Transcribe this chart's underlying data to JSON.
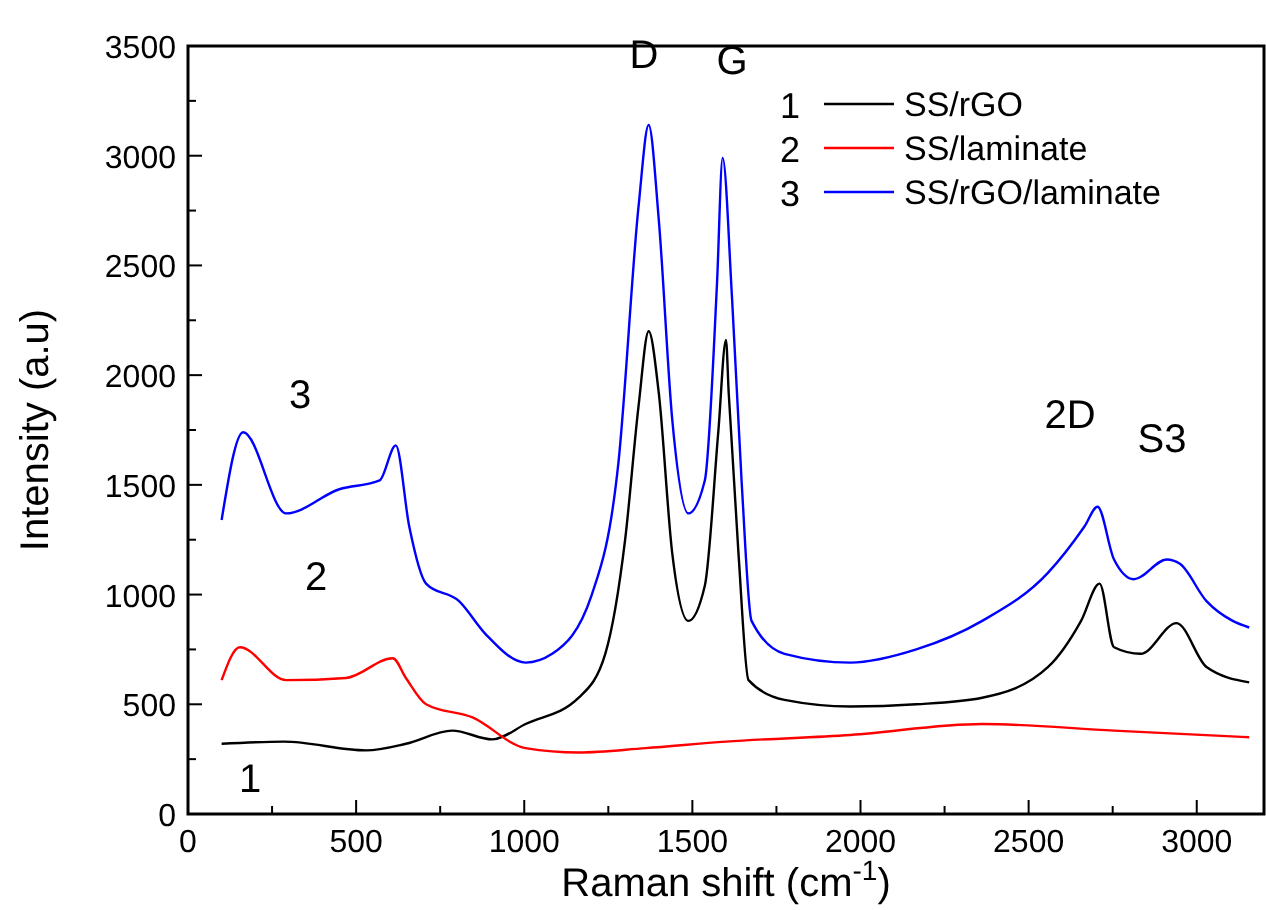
{
  "chart_data": {
    "type": "line",
    "xlabel": "Raman shift (cm$^{-1}$)",
    "ylabel": "Intensity (a.u)",
    "xlim": [
      0,
      3200
    ],
    "ylim": [
      0,
      3500
    ],
    "xticks": [
      0,
      {
        "value": 250,
        "label": null
      },
      500,
      {
        "value": 750,
        "label": null
      },
      1000,
      {
        "value": 1250,
        "label": null
      },
      1500,
      {
        "value": 1750,
        "label": null
      },
      2000,
      {
        "value": 2250,
        "label": null
      },
      2500,
      {
        "value": 2750,
        "label": null
      },
      3000
    ],
    "yticks": [
      0,
      {
        "value": 250,
        "label": null
      },
      500,
      {
        "value": 750,
        "label": null
      },
      1000,
      {
        "value": 1250,
        "label": null
      },
      1500,
      {
        "value": 1750,
        "label": null
      },
      2000,
      {
        "value": 2250,
        "label": null
      },
      2500,
      {
        "value": 2750,
        "label": null
      },
      3000,
      {
        "value": 3250,
        "label": null
      },
      3500
    ],
    "grid": false,
    "legend": "top right",
    "marker": "none",
    "line_style": "solid",
    "series": [
      {
        "name": "SS/rGO",
        "color": "#000000",
        "x": [
          100,
          285,
          530,
          648,
          786,
          905,
          1004,
          1162,
          1241,
          1300,
          1340,
          1370,
          1400,
          1440,
          1488,
          1537,
          1577,
          1600,
          1608,
          1637,
          1667,
          1774,
          1970,
          2166,
          2362,
          2558,
          2656,
          2711,
          2754,
          2833,
          2940,
          3029,
          3156
        ],
        "values": [
          320,
          330,
          290,
          320,
          380,
          340,
          410,
          530,
          730,
          1250,
          1860,
          2200,
          1920,
          1190,
          880,
          1040,
          1740,
          2160,
          1920,
          1190,
          610,
          520,
          490,
          500,
          530,
          670,
          880,
          1050,
          760,
          730,
          870,
          670,
          600
        ]
      },
      {
        "name": "SS/laminate",
        "color": "#ff0000",
        "x": [
          100,
          154,
          292,
          470,
          609,
          648,
          708,
          846,
          1004,
          1162,
          1360,
          1600,
          1970,
          2362,
          2754,
          3156
        ],
        "values": [
          610,
          760,
          610,
          620,
          710,
          620,
          500,
          440,
          300,
          280,
          300,
          330,
          360,
          410,
          380,
          350
        ]
      },
      {
        "name": "SS/rGO/laminate",
        "color": "#0000ff",
        "x": [
          100,
          164,
          292,
          450,
          570,
          618,
          658,
          708,
          806,
          885,
          1004,
          1083,
          1201,
          1280,
          1340,
          1370,
          1400,
          1440,
          1488,
          1537,
          1573,
          1590,
          1618,
          1647,
          1676,
          1774,
          1970,
          2166,
          2362,
          2558,
          2666,
          2705,
          2754,
          2813,
          2911,
          2950,
          3029,
          3107,
          3156
        ],
        "values": [
          1340,
          1740,
          1370,
          1480,
          1520,
          1680,
          1310,
          1050,
          970,
          820,
          690,
          730,
          1000,
          1600,
          2770,
          3140,
          2710,
          1800,
          1370,
          1520,
          2410,
          2990,
          2350,
          1500,
          880,
          730,
          690,
          750,
          880,
          1100,
          1310,
          1400,
          1160,
          1070,
          1160,
          1140,
          970,
          880,
          850
        ]
      }
    ],
    "annotations": [
      "D",
      "G",
      "2D",
      "S3",
      "3",
      "2",
      "1"
    ]
  }
}
